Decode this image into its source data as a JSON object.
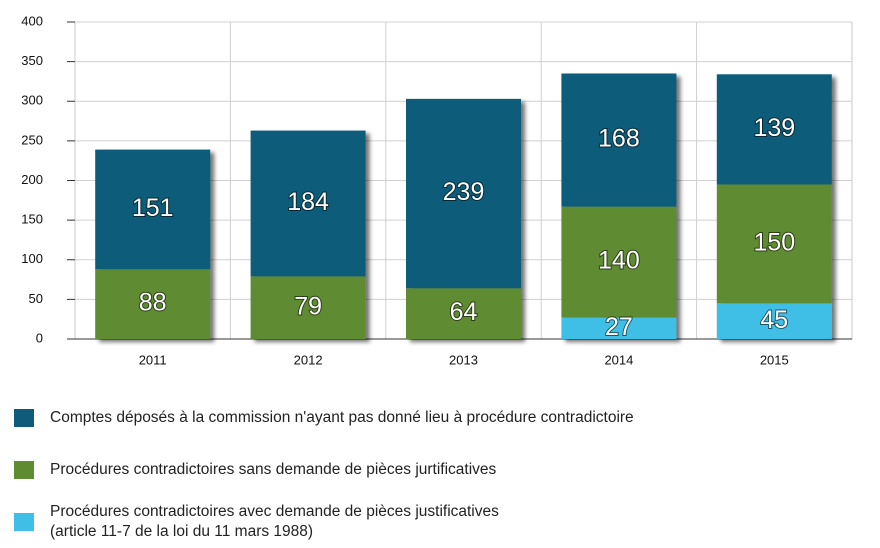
{
  "chart_data": {
    "type": "stacked_bar",
    "categories": [
      "2011",
      "2012",
      "2013",
      "2014",
      "2015"
    ],
    "series": [
      {
        "name": "Procédures contradictoires avec demande de pièces justificatives\n(article 11-7 de la loi du 11 mars 1988)",
        "color": "#3fbfe6",
        "values": [
          null,
          null,
          null,
          27,
          45
        ]
      },
      {
        "name": "Procédures contradictoires sans demande de pièces jurtificatives",
        "color": "#5f8b32",
        "values": [
          88,
          79,
          64,
          140,
          150
        ]
      },
      {
        "name": "Comptes déposés à la commission n'ayant pas donné lieu à procédure contradictoire",
        "color": "#0f5b79",
        "values": [
          151,
          184,
          239,
          168,
          139
        ]
      }
    ],
    "ylim": [
      0,
      400
    ],
    "yticks": [
      0,
      50,
      100,
      150,
      200,
      250,
      300,
      350,
      400
    ],
    "grid": true
  }
}
